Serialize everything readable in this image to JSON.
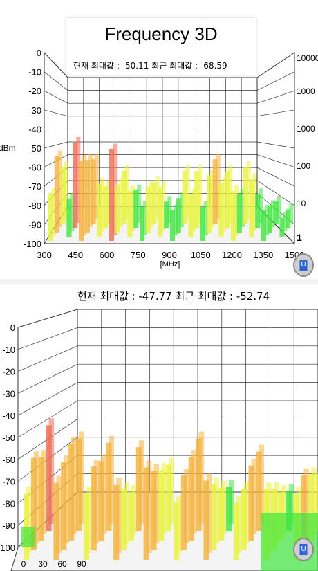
{
  "top_chart": {
    "title": "Frequency 3D",
    "current_max_label": "현재 최대값 :",
    "current_max_value": "-50.11",
    "recent_max_label": "최근 최대값 :",
    "recent_max_value": "-68.59",
    "y_axis_unit": "dBm",
    "y_ticks": [
      "0",
      "-10",
      "-20",
      "-30",
      "-40",
      "-50",
      "-60",
      "-70",
      "-80",
      "-90",
      "-100"
    ],
    "x_axis_unit": "[MHz]",
    "x_ticks": [
      "300",
      "450",
      "600",
      "750",
      "900",
      "1050",
      "1200",
      "1350",
      "1500"
    ],
    "right_ticks": [
      "10000",
      "1000",
      "1000",
      "100",
      "10",
      "1"
    ],
    "u_button_label": "U"
  },
  "bottom_chart": {
    "current_max_label": "현재 최대값 :",
    "current_max_value": "-47.77",
    "recent_max_label": "최근 최대값 :",
    "recent_max_value": "-52.74",
    "y_ticks": [
      "0",
      "-10",
      "-20",
      "-30",
      "-40",
      "-50",
      "-60",
      "-70",
      "-80",
      "-90",
      "-100"
    ],
    "x_ticks": [
      "0",
      "30",
      "60",
      "90"
    ],
    "u_button_label": "U"
  },
  "colors": {
    "grid": "#333333",
    "bar_green": "#3ee63e",
    "bar_yellow": "#e9f23a",
    "bar_orange": "#f5b23a",
    "bar_red": "#ee6a50",
    "u_button": "#2d63d6"
  },
  "chart_data": [
    {
      "type": "bar",
      "title": "Frequency 3D",
      "xlabel": "[MHz]",
      "ylabel": "dBm",
      "ylim": [
        -100,
        0
      ],
      "xlim": [
        300,
        1500
      ],
      "x": [
        300,
        330,
        360,
        390,
        420,
        450,
        480,
        510,
        540,
        570,
        600,
        630,
        660,
        690,
        720,
        750,
        780,
        810,
        840,
        870,
        900,
        930,
        960,
        990,
        1020,
        1050,
        1080,
        1110,
        1140,
        1170,
        1200,
        1230,
        1260,
        1290,
        1320,
        1350,
        1380,
        1410,
        1440,
        1470
      ],
      "values": [
        -75,
        -60,
        -70,
        -80,
        -55,
        -58,
        -62,
        -66,
        -72,
        -78,
        -52,
        -75,
        -72,
        -76,
        -80,
        -82,
        -76,
        -78,
        -74,
        -86,
        -84,
        -82,
        -72,
        -78,
        -70,
        -82,
        -70,
        -66,
        -72,
        -70,
        -74,
        -80,
        -70,
        -70,
        -82,
        -84,
        -86,
        -88,
        -90,
        -90
      ],
      "grid": true
    },
    {
      "type": "bar",
      "ylim": [
        -100,
        0
      ],
      "x_ticks": [
        0,
        30,
        60,
        90
      ],
      "values": [
        -70,
        -58,
        -62,
        -52,
        -65,
        -60,
        -56,
        -58,
        -70,
        -62,
        -64,
        -60,
        -66,
        -72,
        -78,
        -62,
        -58,
        -64,
        -68,
        -70,
        -74,
        -66,
        -62,
        -58,
        -64,
        -70,
        -76,
        -80,
        -74,
        -72,
        -66,
        -64,
        -68,
        -72,
        -78,
        -82,
        -70,
        -66,
        -70,
        -74
      ],
      "grid": true
    }
  ]
}
